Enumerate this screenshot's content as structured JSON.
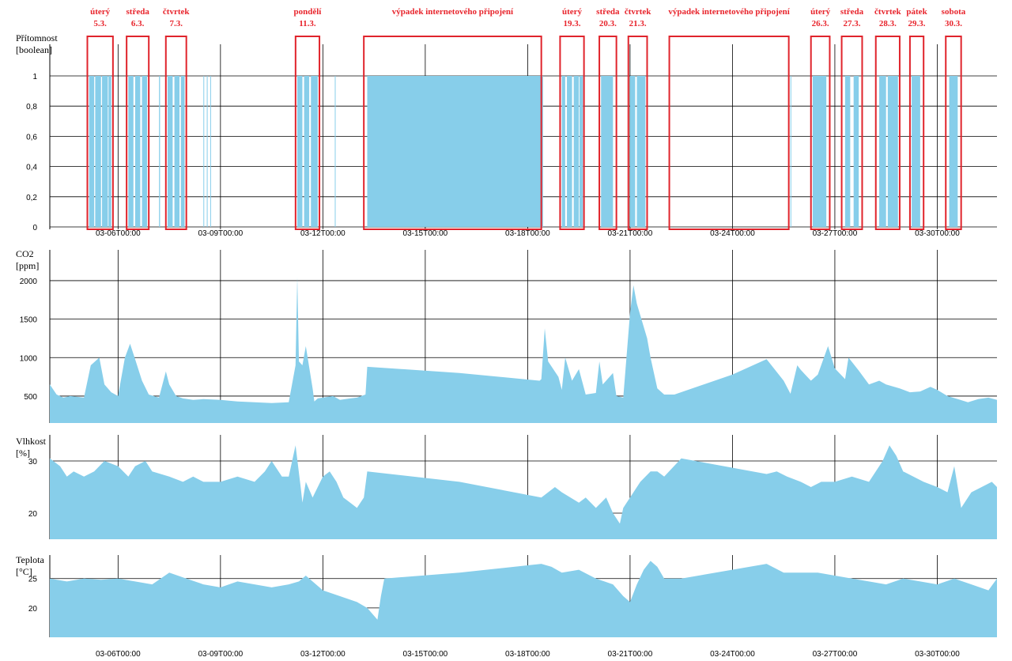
{
  "colors": {
    "fill": "#87ceea",
    "grid": "#000000",
    "box": "#e0242c",
    "text": "#000000"
  },
  "x_axis": {
    "range": [
      "03-04T00:00",
      "03-31T18:00"
    ],
    "ticks": [
      {
        "day": 6,
        "label": "03-06T00:00"
      },
      {
        "day": 9,
        "label": "03-09T00:00"
      },
      {
        "day": 12,
        "label": "03-12T00:00"
      },
      {
        "day": 15,
        "label": "03-15T00:00"
      },
      {
        "day": 18,
        "label": "03-18T00:00"
      },
      {
        "day": 21,
        "label": "03-21T00:00"
      },
      {
        "day": 24,
        "label": "03-24T00:00"
      },
      {
        "day": 27,
        "label": "03-27T00:00"
      },
      {
        "day": 30,
        "label": "03-30T00:00"
      }
    ]
  },
  "annotations": [
    {
      "line1": "úterý",
      "line2": "5.3.",
      "from": 5.1,
      "to": 5.85
    },
    {
      "line1": "středa",
      "line2": "6.3.",
      "from": 6.25,
      "to": 6.9
    },
    {
      "line1": "čtvrtek",
      "line2": "7.3.",
      "from": 7.4,
      "to": 8.0
    },
    {
      "line1": "pondělí",
      "line2": "11.3.",
      "from": 11.2,
      "to": 11.9
    },
    {
      "line1": "výpadek internetového připojení",
      "line2": "",
      "from": 13.2,
      "to": 18.4
    },
    {
      "line1": "úterý",
      "line2": "19.3.",
      "from": 18.95,
      "to": 19.65
    },
    {
      "line1": "středa",
      "line2": "20.3.",
      "from": 20.1,
      "to": 20.6
    },
    {
      "line1": "čtvrtek",
      "line2": "21.3.",
      "from": 20.95,
      "to": 21.5
    },
    {
      "line1": "výpadek internetového připojení",
      "line2": "",
      "from": 22.15,
      "to": 25.65
    },
    {
      "line1": "úterý",
      "line2": "26.3.",
      "from": 26.3,
      "to": 26.85
    },
    {
      "line1": "středa",
      "line2": "27.3.",
      "from": 27.2,
      "to": 27.8
    },
    {
      "line1": "čtvrtek",
      "line2": "28.3.",
      "from": 28.2,
      "to": 28.9
    },
    {
      "line1": "pátek",
      "line2": "29.3.",
      "from": 29.2,
      "to": 29.6
    },
    {
      "line1": "sobota",
      "line2": "30.3.",
      "from": 30.25,
      "to": 30.7
    }
  ],
  "chart_data": [
    {
      "type": "bar",
      "ylabel": "Přítomnost",
      "yunit": "[boolean]",
      "ylim": [
        0,
        1
      ],
      "yticks": [
        0,
        0.2,
        0.4,
        0.6,
        0.8,
        1
      ],
      "ytick_labels": [
        "0",
        "0,2",
        "0,4",
        "0,6",
        "0,8",
        "1"
      ],
      "grid": true,
      "presence_intervals": [
        [
          5.15,
          5.3
        ],
        [
          5.33,
          5.5
        ],
        [
          5.53,
          5.7
        ],
        [
          5.72,
          5.8
        ],
        [
          6.3,
          6.45
        ],
        [
          6.5,
          6.65
        ],
        [
          6.7,
          6.85
        ],
        [
          7.2,
          7.23
        ],
        [
          7.45,
          7.6
        ],
        [
          7.65,
          7.8
        ],
        [
          7.84,
          7.95
        ],
        [
          8.5,
          8.52
        ],
        [
          8.6,
          8.62
        ],
        [
          8.7,
          8.72
        ],
        [
          11.25,
          11.4
        ],
        [
          11.45,
          11.6
        ],
        [
          11.65,
          11.85
        ],
        [
          12.35,
          12.37
        ],
        [
          13.3,
          18.45
        ],
        [
          19.0,
          19.1
        ],
        [
          19.15,
          19.3
        ],
        [
          19.35,
          19.5
        ],
        [
          19.52,
          19.62
        ],
        [
          20.15,
          20.5
        ],
        [
          21.0,
          21.15
        ],
        [
          21.2,
          21.45
        ],
        [
          25.7,
          25.72
        ],
        [
          26.35,
          26.75
        ],
        [
          27.3,
          27.45
        ],
        [
          27.55,
          27.7
        ],
        [
          28.3,
          28.5
        ],
        [
          28.55,
          28.85
        ],
        [
          29.25,
          29.5
        ],
        [
          30.35,
          30.6
        ]
      ]
    },
    {
      "type": "area",
      "ylabel": "CO2",
      "yunit": "[ppm]",
      "ylim": [
        150,
        2400
      ],
      "yticks": [
        500,
        1000,
        1500,
        2000
      ],
      "ytick_labels": [
        "500",
        "1000",
        "1500",
        "2000"
      ],
      "grid": true,
      "x": [
        4.0,
        4.2,
        4.4,
        4.6,
        5.0,
        5.2,
        5.3,
        5.45,
        5.6,
        5.8,
        6.0,
        6.2,
        6.35,
        6.5,
        6.7,
        6.9,
        7.2,
        7.4,
        7.5,
        7.7,
        7.9,
        8.2,
        8.5,
        9.0,
        9.5,
        10.0,
        10.5,
        11.0,
        11.2,
        11.25,
        11.3,
        11.4,
        11.5,
        11.7,
        11.75,
        11.85,
        12.0,
        12.3,
        12.5,
        12.8,
        13.0,
        13.25,
        13.3,
        16.0,
        18.35,
        18.4,
        18.5,
        18.6,
        18.9,
        19.0,
        19.1,
        19.3,
        19.5,
        19.7,
        20.0,
        20.1,
        20.2,
        20.5,
        20.6,
        20.8,
        21.0,
        21.1,
        21.2,
        21.5,
        21.6,
        21.8,
        22.0,
        22.3,
        24.0,
        25.0,
        25.5,
        25.7,
        25.9,
        26.0,
        26.3,
        26.5,
        26.8,
        27.0,
        27.3,
        27.4,
        27.7,
        28.0,
        28.3,
        28.5,
        28.9,
        29.2,
        29.5,
        29.8,
        30.0,
        30.3,
        30.6,
        30.9,
        31.2,
        31.5,
        31.75
      ],
      "y": [
        650,
        520,
        480,
        500,
        480,
        900,
        940,
        1000,
        650,
        550,
        500,
        1000,
        1180,
        980,
        700,
        520,
        480,
        820,
        650,
        500,
        470,
        450,
        460,
        450,
        430,
        420,
        410,
        420,
        900,
        2050,
        950,
        900,
        1150,
        600,
        430,
        470,
        480,
        500,
        450,
        470,
        480,
        520,
        880,
        800,
        700,
        720,
        1380,
        950,
        750,
        580,
        1000,
        700,
        850,
        520,
        540,
        950,
        650,
        800,
        500,
        480,
        1580,
        1940,
        1700,
        1250,
        1000,
        600,
        520,
        520,
        780,
        980,
        700,
        530,
        900,
        840,
        700,
        780,
        1150,
        860,
        720,
        1000,
        830,
        650,
        700,
        650,
        600,
        550,
        560,
        620,
        580,
        500,
        460,
        420,
        460,
        480,
        450
      ]
    },
    {
      "type": "area",
      "ylabel": "Vlhkost",
      "yunit": "[%]",
      "ylim": [
        15,
        35
      ],
      "yticks": [
        20,
        30
      ],
      "ytick_labels": [
        "20",
        "30"
      ],
      "grid": true,
      "x": [
        4.0,
        4.3,
        4.5,
        4.7,
        5.0,
        5.3,
        5.6,
        6.0,
        6.3,
        6.5,
        6.8,
        7.0,
        7.5,
        7.9,
        8.2,
        8.5,
        9.0,
        9.5,
        10.0,
        10.3,
        10.5,
        10.8,
        11.0,
        11.2,
        11.35,
        11.4,
        11.5,
        11.7,
        12.0,
        12.2,
        12.4,
        12.6,
        12.8,
        13.0,
        13.2,
        13.3,
        16.0,
        18.4,
        18.6,
        18.8,
        19.0,
        19.5,
        19.7,
        20.0,
        20.3,
        20.5,
        20.7,
        20.8,
        21.0,
        21.3,
        21.6,
        21.8,
        22.0,
        22.5,
        25.0,
        25.3,
        25.6,
        26.0,
        26.3,
        26.6,
        27.0,
        27.5,
        28.0,
        28.4,
        28.6,
        28.8,
        29.0,
        29.3,
        29.6,
        30.0,
        30.3,
        30.5,
        30.7,
        31.0,
        31.3,
        31.6,
        31.75
      ],
      "y": [
        30.5,
        29,
        27,
        28,
        27,
        28,
        30,
        29,
        27,
        29,
        30,
        28,
        27,
        26,
        27,
        26,
        26,
        27,
        26,
        28,
        30,
        27,
        27,
        33,
        25,
        22,
        26,
        23,
        27,
        28,
        26,
        23,
        22,
        21,
        23,
        28,
        26,
        23,
        24,
        25,
        24,
        22,
        23,
        21,
        23,
        20,
        18,
        21,
        23,
        26,
        28,
        28,
        27,
        30.5,
        27.5,
        28,
        27,
        26,
        25,
        26,
        26,
        27,
        26,
        30,
        33,
        31,
        28,
        27,
        26,
        25,
        24,
        29,
        21,
        24,
        25,
        26,
        25
      ]
    },
    {
      "type": "area",
      "ylabel": "Teplota",
      "yunit": "[°C]",
      "ylim": [
        15,
        29
      ],
      "yticks": [
        20,
        25
      ],
      "ytick_labels": [
        "20",
        "25"
      ],
      "grid": true,
      "x": [
        4.0,
        4.5,
        5.0,
        5.5,
        6.0,
        6.5,
        7.0,
        7.5,
        8.0,
        8.5,
        9.0,
        9.5,
        10.0,
        10.5,
        11.0,
        11.3,
        11.5,
        12.0,
        12.5,
        13.0,
        13.3,
        13.6,
        13.7,
        13.8,
        16.0,
        18.4,
        18.7,
        19.0,
        19.5,
        20.0,
        20.5,
        20.8,
        21.0,
        21.2,
        21.4,
        21.6,
        21.8,
        22.0,
        22.5,
        25.0,
        25.5,
        26.0,
        26.5,
        27.0,
        27.5,
        28.0,
        28.5,
        29.0,
        29.5,
        30.0,
        30.5,
        31.0,
        31.5,
        31.75
      ],
      "y": [
        25,
        24.5,
        25,
        24.8,
        25,
        24.5,
        24,
        26,
        25,
        24,
        23.5,
        24.5,
        24,
        23.5,
        24,
        24.5,
        25.5,
        23,
        22,
        21,
        20,
        18,
        22,
        25,
        26,
        27.5,
        27,
        26,
        26.5,
        25,
        24,
        22,
        21,
        24,
        26.5,
        28,
        27,
        25,
        25,
        27.5,
        26,
        26,
        26,
        25.5,
        25,
        24.5,
        24,
        25,
        24.5,
        24,
        25,
        24,
        23,
        25
      ]
    }
  ]
}
